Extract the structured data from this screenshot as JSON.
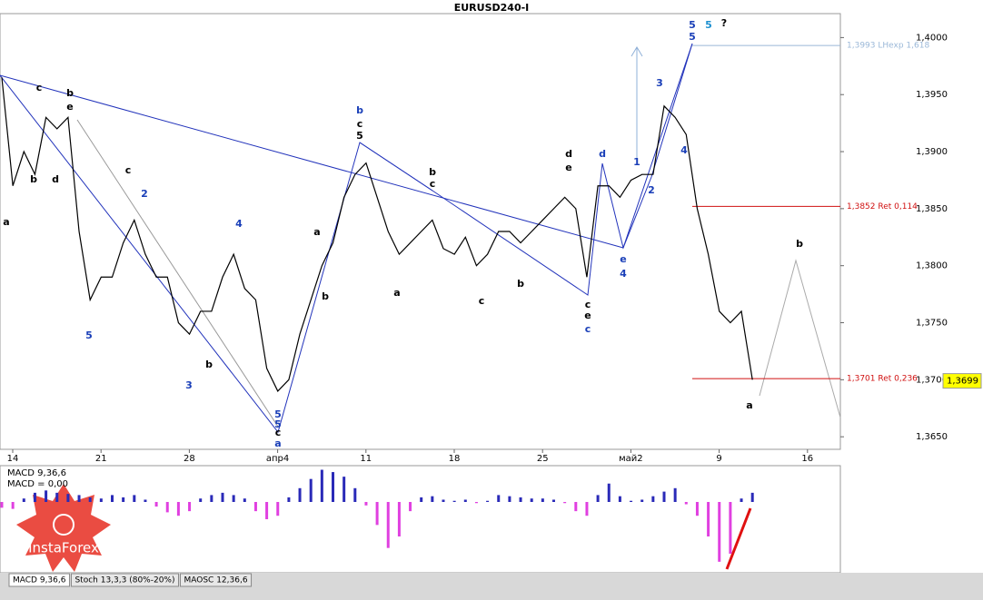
{
  "chart_data": {
    "type": "line",
    "title": "EURUSD240-I",
    "color": "#000000",
    "values": [
      1.3965,
      1.387,
      1.39,
      1.388,
      1.393,
      1.392,
      1.393,
      1.383,
      1.377,
      1.379,
      1.379,
      1.382,
      1.384,
      1.381,
      1.379,
      1.379,
      1.375,
      1.374,
      1.376,
      1.376,
      1.379,
      1.381,
      1.378,
      1.377,
      1.371,
      1.369,
      1.37,
      1.374,
      1.377,
      1.38,
      1.382,
      1.386,
      1.388,
      1.389,
      1.386,
      1.383,
      1.381,
      1.382,
      1.383,
      1.384,
      1.3815,
      1.381,
      1.3825,
      1.38,
      1.381,
      1.383,
      1.383,
      1.382,
      1.383,
      1.384,
      1.385,
      1.386,
      1.385,
      1.379,
      1.387,
      1.387,
      1.386,
      1.3875,
      1.388,
      1.388,
      1.394,
      1.393,
      1.3915,
      1.385,
      1.381,
      1.376,
      1.375,
      1.376,
      1.37
    ],
    "x_labels": [
      "14",
      "21",
      "28",
      "апр4",
      "11",
      "18",
      "25",
      "май2",
      "9",
      "16"
    ],
    "ylim": [
      1.4021,
      1.3639
    ],
    "yticks": [
      {
        "value": 1.4,
        "label": "1,4000"
      },
      {
        "value": 1.395,
        "label": "1,3950"
      },
      {
        "value": 1.39,
        "label": "1,3900"
      },
      {
        "value": 1.385,
        "label": "1,3850"
      },
      {
        "value": 1.38,
        "label": "1,3800"
      },
      {
        "value": 1.375,
        "label": "1,3750"
      },
      {
        "value": 1.37,
        "label": "1,3700"
      },
      {
        "value": 1.365,
        "label": "1,3650"
      }
    ],
    "levels": [
      {
        "value": 1.3993,
        "label": "1,3993 LHexp 1,618",
        "color": "#9bb8d8"
      },
      {
        "value": 1.3852,
        "label": "1,3852 Ret 0,114",
        "color": "#d01010"
      },
      {
        "value": 1.3701,
        "label": "1,3701 Ret 0,236",
        "color": "#d01010"
      }
    ],
    "last_price": {
      "value": 1.3699,
      "label": "1,3699"
    },
    "annotations": [
      {
        "text": "5",
        "color": "#1a3fb8"
      },
      {
        "text": "5",
        "color": "#1e90d0"
      },
      {
        "text": "?",
        "color": "#000000"
      },
      {
        "text": "5",
        "color": "#1a3fb8"
      },
      {
        "text": "3",
        "color": "#1a3fb8"
      },
      {
        "text": "4",
        "color": "#1a3fb8"
      },
      {
        "text": "1",
        "color": "#1a3fb8"
      },
      {
        "text": "2",
        "color": "#1a3fb8"
      },
      {
        "text": "d",
        "color": "#1a3fb8"
      },
      {
        "text": "d",
        "color": "#000000"
      },
      {
        "text": "e",
        "color": "#000000"
      },
      {
        "text": "e",
        "color": "#1a3fb8"
      },
      {
        "text": "4",
        "color": "#1a3fb8"
      },
      {
        "text": "c",
        "color": "#000000"
      },
      {
        "text": "e",
        "color": "#000000"
      },
      {
        "text": "c",
        "color": "#1a3fb8"
      },
      {
        "text": "b",
        "color": "#000000"
      },
      {
        "text": "a",
        "color": "#000000"
      },
      {
        "text": "b",
        "color": "#1a3fb8"
      },
      {
        "text": "c",
        "color": "#000000"
      },
      {
        "text": "5",
        "color": "#000000"
      },
      {
        "text": "b",
        "color": "#000000"
      },
      {
        "text": "c",
        "color": "#000000"
      },
      {
        "text": "a",
        "color": "#000000"
      },
      {
        "text": "c",
        "color": "#000000"
      },
      {
        "text": "b",
        "color": "#000000"
      },
      {
        "text": "a",
        "color": "#000000"
      },
      {
        "text": "b",
        "color": "#000000"
      },
      {
        "text": "5",
        "color": "#1a3fb8"
      },
      {
        "text": "5",
        "color": "#1a3fb8"
      },
      {
        "text": "c",
        "color": "#000000"
      },
      {
        "text": "a",
        "color": "#1a3fb8"
      },
      {
        "text": "4",
        "color": "#1a3fb8"
      },
      {
        "text": "2",
        "color": "#1a3fb8"
      },
      {
        "text": "3",
        "color": "#1a3fb8"
      },
      {
        "text": "5",
        "color": "#1a3fb8"
      },
      {
        "text": "b",
        "color": "#000000"
      },
      {
        "text": "c",
        "color": "#000000"
      },
      {
        "text": "a",
        "color": "#000000"
      },
      {
        "text": "e",
        "color": "#000000"
      },
      {
        "text": "d",
        "color": "#000000"
      },
      {
        "text": "b",
        "color": "#000000"
      },
      {
        "text": "c",
        "color": "#000000"
      },
      {
        "text": "b",
        "color": "#000000"
      }
    ],
    "macd": {
      "labels": [
        "MACD 9,36,6",
        "MACD = 0,00"
      ],
      "ylim": [
        -0.006,
        0.003
      ],
      "positive_color": "#2a2ab8",
      "negative_color": "#e040e0",
      "values": [
        -0.0005,
        -0.0006,
        0.0003,
        0.0008,
        0.001,
        0.0008,
        0.0007,
        0.0006,
        0.0004,
        0.0003,
        0.0006,
        0.0004,
        0.0006,
        0.0002,
        -0.0004,
        -0.0009,
        -0.0012,
        -0.0008,
        0.0003,
        0.0006,
        0.0008,
        0.0006,
        0.0003,
        -0.0008,
        -0.0015,
        -0.0012,
        0.0004,
        0.0012,
        0.002,
        0.0028,
        0.0026,
        0.0022,
        0.0012,
        -0.0003,
        -0.002,
        -0.004,
        -0.003,
        -0.0008,
        0.0004,
        0.0005,
        0.0002,
        0.0001,
        0.0002,
        -0.0001,
        0.0001,
        0.0006,
        0.0005,
        0.0004,
        0.0003,
        0.0003,
        0.0002,
        -0.0001,
        -0.0008,
        -0.0012,
        0.0006,
        0.0016,
        0.0005,
        0.0001,
        0.0002,
        0.0005,
        0.0009,
        0.0012,
        -0.0002,
        -0.0012,
        -0.003,
        -0.0052,
        -0.0045,
        0.0003,
        0.0008
      ]
    },
    "tabs": [
      "MACD 9,36,6",
      "Stoch 13,3,3 (80%-20%)",
      "MAOSC 12,36,6"
    ],
    "watermark": "InstaForex"
  }
}
